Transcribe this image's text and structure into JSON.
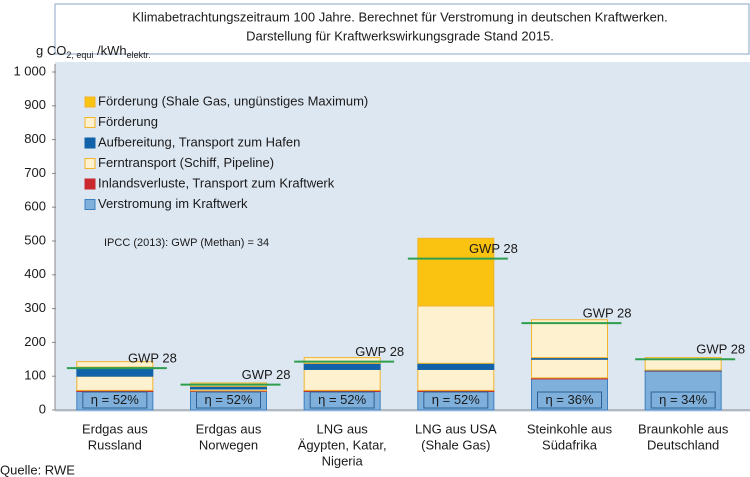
{
  "chart_data": {
    "type": "stacked_bar",
    "title": [
      "Klimabetrachtungszeitraum 100 Jahre. Berechnet für Verstromung in deutschen Kraftwerken.",
      "Darstellung für Kraftwerkswirkungsgrade Stand 2015."
    ],
    "y_axis_label": {
      "main": "g CO",
      "sub1": "2, equi",
      "mid": " /kWh",
      "sub2": "elektr."
    },
    "categories": [
      [
        "Erdgas aus",
        "Russland"
      ],
      [
        "Erdgas aus",
        "Norwegen"
      ],
      [
        "LNG aus",
        "Ägypten, Katar,",
        "Nigeria"
      ],
      [
        "LNG aus USA",
        "(Shale Gas)"
      ],
      [
        "Steinkohle aus",
        "Südafrika"
      ],
      [
        "Braunkohle aus",
        "Deutschland"
      ]
    ],
    "series": [
      {
        "name": "Verstromung im Kraftwerk",
        "color": "#7fb0dc",
        "stroke": "#3d7fc0",
        "values": [
          55,
          55,
          55,
          55,
          92,
          115
        ]
      },
      {
        "name": "Inlandsverluste, Transport zum Kraftwerk",
        "color": "#c8282e",
        "stroke": "#c8282e",
        "values": [
          3,
          2,
          3,
          3,
          3,
          1
        ]
      },
      {
        "name": "Ferntransport  (Schiff, Pipeline)",
        "color": "#fdf1cf",
        "stroke": "#f2b42b",
        "values": [
          42,
          5,
          62,
          62,
          55,
          0
        ]
      },
      {
        "name": "Aufbereitung, Transport zum Hafen",
        "color": "#1262aa",
        "stroke": "#1262aa",
        "values": [
          27,
          8,
          18,
          18,
          5,
          2
        ]
      },
      {
        "name": "Förderung",
        "color": "#fdf1cf",
        "stroke": "#f2b42b",
        "values": [
          16,
          10,
          17,
          170,
          112,
          37
        ]
      },
      {
        "name": "Förderung  (Shale Gas, ungünstiges Maximum)",
        "color": "#fac312",
        "stroke": "#f2b42b",
        "values": [
          0,
          0,
          0,
          200,
          0,
          0
        ]
      }
    ],
    "efficiency_labels": [
      "η = 52%",
      "η = 52%",
      "η = 52%",
      "η = 52%",
      "η = 36%",
      "η = 34%"
    ],
    "gwp28": {
      "label": "GWP 28",
      "color": "#2e9e4e",
      "values": [
        124,
        75,
        143,
        448,
        257,
        150
      ]
    },
    "annotation": "IPCC (2013): GWP (Methan) = 34",
    "source": "Quelle: RWE",
    "ylim": [
      0,
      1000
    ],
    "yticks": [
      0,
      100,
      200,
      300,
      400,
      500,
      600,
      700,
      800,
      900,
      {
        "value": 1000,
        "label": "1 000"
      }
    ],
    "legend": "top-left"
  }
}
